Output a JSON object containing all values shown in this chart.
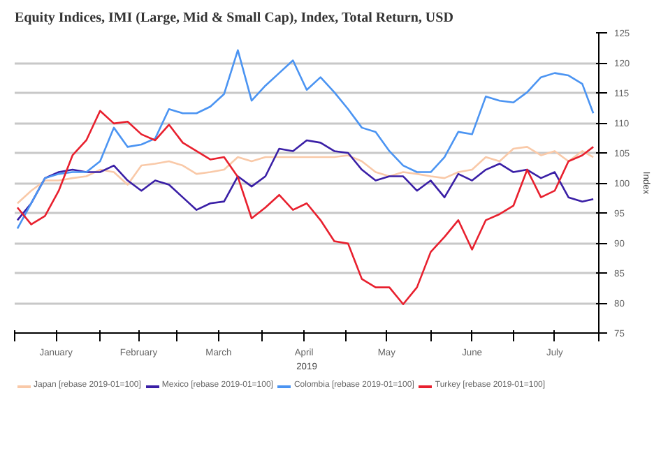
{
  "chart_data": {
    "type": "line",
    "title": "Equity Indices, IMI (Large, Mid & Small Cap), Index, Total Return, USD",
    "xlabel": "2019",
    "ylabel": "Index",
    "x": [
      "2019-01-02",
      "2019-01-07",
      "2019-01-12",
      "2019-01-17",
      "2019-01-22",
      "2019-01-27",
      "2019-02-01",
      "2019-02-06",
      "2019-02-11",
      "2019-02-16",
      "2019-02-21",
      "2019-02-26",
      "2019-03-03",
      "2019-03-08",
      "2019-03-13",
      "2019-03-18",
      "2019-03-23",
      "2019-03-28",
      "2019-04-02",
      "2019-04-07",
      "2019-04-12",
      "2019-04-17",
      "2019-04-22",
      "2019-04-27",
      "2019-05-02",
      "2019-05-07",
      "2019-05-12",
      "2019-05-17",
      "2019-05-22",
      "2019-05-27",
      "2019-06-01",
      "2019-06-06",
      "2019-06-11",
      "2019-06-16",
      "2019-06-21",
      "2019-06-26",
      "2019-07-01",
      "2019-07-06",
      "2019-07-11",
      "2019-07-16",
      "2019-07-21",
      "2019-07-26",
      "2019-07-30"
    ],
    "series": [
      {
        "name": "Japan [rebase 2019-01=100]",
        "color": "#f9c9a8",
        "values": [
          96.6,
          98.7,
          100.4,
          100.4,
          100.8,
          101.1,
          102.2,
          101.8,
          99.7,
          102.9,
          103.2,
          103.6,
          102.9,
          101.5,
          101.8,
          102.2,
          104.3,
          103.6,
          104.3,
          104.3,
          104.3,
          104.3,
          104.3,
          104.3,
          104.6,
          103.6,
          101.8,
          101.1,
          101.8,
          101.5,
          101.1,
          100.8,
          101.8,
          102.2,
          104.3,
          103.6,
          105.7,
          106,
          104.6,
          105.3,
          103.6,
          105.3,
          104.3
        ]
      },
      {
        "name": "Mexico [rebase 2019-01=100]",
        "color": "#3a1fa6",
        "values": [
          93.8,
          96.6,
          100.8,
          101.8,
          102.2,
          101.8,
          101.8,
          102.9,
          100.4,
          98.7,
          100.4,
          99.7,
          97.6,
          95.5,
          96.6,
          96.9,
          101.1,
          99.4,
          101.1,
          105.7,
          105.3,
          107.1,
          106.7,
          105.3,
          105,
          102.2,
          100.4,
          101.1,
          101.1,
          98.7,
          100.4,
          97.6,
          101.5,
          100.4,
          102.2,
          103.2,
          101.8,
          102.2,
          100.8,
          101.8,
          97.6,
          96.9,
          97.3
        ]
      },
      {
        "name": "Colombia [rebase 2019-01=100]",
        "color": "#4b94f2",
        "values": [
          92.4,
          96.6,
          100.8,
          101.5,
          101.8,
          101.8,
          103.6,
          109.2,
          106,
          106.4,
          107.4,
          112.3,
          111.6,
          111.6,
          112.7,
          114.8,
          122.1,
          113.7,
          116.2,
          118.3,
          120.4,
          115.5,
          117.6,
          115.1,
          112.3,
          109.2,
          108.5,
          105.3,
          102.9,
          101.8,
          101.8,
          104.3,
          108.5,
          108.1,
          114.4,
          113.7,
          113.4,
          115.1,
          117.6,
          118.3,
          117.9,
          116.5,
          111.6
        ]
      },
      {
        "name": "Turkey [rebase 2019-01=100]",
        "color": "#e8202e",
        "values": [
          95.9,
          93.1,
          94.5,
          98.7,
          104.6,
          107.1,
          112,
          109.9,
          110.2,
          108.1,
          107.1,
          109.7,
          106.7,
          105.3,
          103.9,
          104.3,
          101,
          94.1,
          95.9,
          98,
          95.5,
          96.6,
          93.8,
          90.3,
          89.9,
          84,
          82.6,
          82.6,
          79.8,
          82.6,
          88.5,
          91,
          93.8,
          88.9,
          93.8,
          94.8,
          96.2,
          102.2,
          97.6,
          98.7,
          103.6,
          104.6,
          106
        ]
      }
    ],
    "xlim": [
      "2019-01-01",
      "2019-08-01"
    ],
    "xticks": [
      {
        "value": "2019-01-01",
        "label": null
      },
      {
        "value": "2019-01-16",
        "label": "January"
      },
      {
        "value": "2019-02-01",
        "label": null
      },
      {
        "value": "2019-02-15",
        "label": "February"
      },
      {
        "value": "2019-03-01",
        "label": null
      },
      {
        "value": "2019-03-16",
        "label": "March"
      },
      {
        "value": "2019-04-01",
        "label": null
      },
      {
        "value": "2019-04-16",
        "label": "April"
      },
      {
        "value": "2019-05-01",
        "label": null
      },
      {
        "value": "2019-05-16",
        "label": "May"
      },
      {
        "value": "2019-06-01",
        "label": null
      },
      {
        "value": "2019-06-16",
        "label": "June"
      },
      {
        "value": "2019-07-01",
        "label": null
      },
      {
        "value": "2019-07-16",
        "label": "July"
      },
      {
        "value": "2019-08-01",
        "label": null
      }
    ],
    "ylim": [
      75,
      125
    ],
    "yticks": [
      75,
      80,
      85,
      90,
      95,
      100,
      105,
      110,
      115,
      120,
      125
    ],
    "grid": "y",
    "legend": "bottom",
    "marker": "none",
    "line_style": "solid"
  }
}
